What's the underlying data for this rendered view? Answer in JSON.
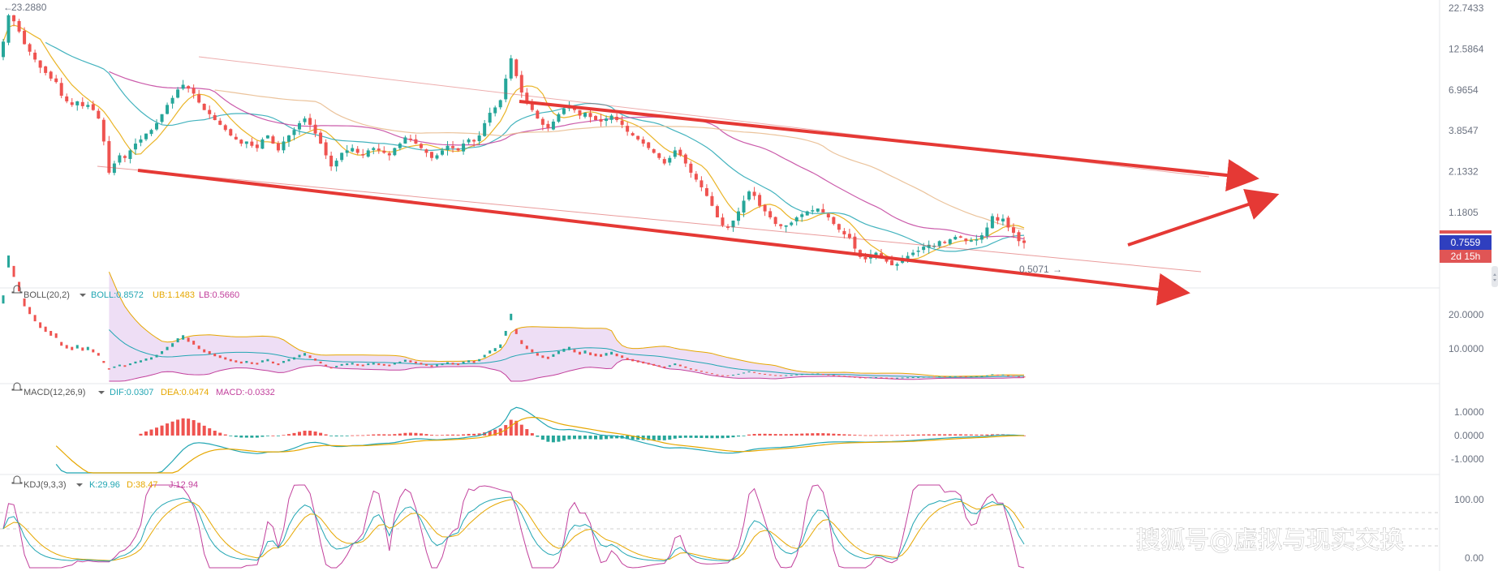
{
  "price": {
    "high_label": "23.2880",
    "low_label": "0.5071",
    "current_price": "0.7559",
    "countdown": "2d 15h",
    "y_ticks": [
      "22.7433",
      "12.5864",
      "6.9654",
      "3.8547",
      "2.1332",
      "1.1805"
    ],
    "y_tick_values": [
      22.7433,
      12.5864,
      6.9654,
      3.8547,
      2.1332,
      1.1805
    ],
    "scale": "log"
  },
  "boll": {
    "name": "BOLL(20,2)",
    "values": [
      {
        "label": "BOLL:0.8572",
        "color": "#22a6b3"
      },
      {
        "label": "UB:1.1483",
        "color": "#e6a700"
      },
      {
        "label": "LB:0.5660",
        "color": "#c2409c"
      }
    ],
    "y_ticks": [
      "20.0000",
      "10.0000"
    ]
  },
  "macd": {
    "name": "MACD(12,26,9)",
    "values": [
      {
        "label": "DIF:0.0307",
        "color": "#22a6b3"
      },
      {
        "label": "DEA:0.0474",
        "color": "#e6a700"
      },
      {
        "label": "MACD:-0.0332",
        "color": "#c2409c"
      }
    ],
    "y_ticks": [
      "1.0000",
      "0.0000",
      "-1.0000"
    ]
  },
  "kdj": {
    "name": "KDJ(9,3,3)",
    "values": [
      {
        "label": "K:29.96",
        "color": "#22a6b3"
      },
      {
        "label": "D:38.47",
        "color": "#e6a700"
      },
      {
        "label": "J:12.94",
        "color": "#c2409c"
      }
    ],
    "y_ticks": [
      "100.00",
      "0.00"
    ]
  },
  "watermark": "搜狐号@虚拟与现实交换",
  "colors": {
    "up": "#26a69a",
    "down": "#ef5350",
    "arrow": "#e53935",
    "price_badge": "#2f3fbf",
    "countdown_badge": "#e05555"
  },
  "chart_data": {
    "type": "candlestick",
    "y_scale": "log",
    "close_series": [
      14.0,
      20.5,
      18.8,
      16.2,
      13.5,
      12.1,
      10.8,
      9.6,
      8.9,
      8.2,
      7.8,
      6.4,
      5.9,
      5.6,
      5.9,
      5.5,
      5.6,
      5.2,
      4.6,
      3.3,
      2.1,
      2.4,
      2.7,
      2.6,
      2.9,
      3.2,
      3.4,
      3.7,
      3.9,
      4.3,
      4.9,
      5.6,
      6.2,
      7.0,
      7.5,
      7.1,
      6.6,
      5.8,
      5.2,
      4.9,
      4.5,
      4.2,
      3.9,
      3.6,
      3.4,
      3.2,
      3.3,
      3.1,
      3.0,
      3.4,
      3.6,
      3.2,
      2.9,
      3.3,
      3.6,
      3.9,
      4.3,
      4.6,
      4.2,
      3.7,
      3.2,
      2.7,
      2.3,
      2.5,
      2.8,
      2.9,
      3.0,
      2.8,
      2.7,
      2.9,
      3.0,
      2.9,
      2.8,
      2.7,
      3.0,
      3.2,
      3.5,
      3.4,
      3.2,
      3.0,
      2.8,
      2.6,
      2.7,
      2.9,
      3.1,
      3.0,
      2.9,
      3.2,
      3.4,
      3.3,
      3.6,
      4.3,
      5.0,
      5.4,
      6.0,
      8.2,
      11.0,
      8.5,
      6.7,
      5.8,
      5.2,
      4.6,
      4.2,
      4.0,
      4.4,
      4.9,
      5.3,
      5.6,
      5.2,
      4.8,
      5.0,
      4.7,
      4.5,
      4.4,
      4.6,
      4.8,
      4.5,
      4.2,
      3.8,
      3.6,
      3.4,
      3.2,
      3.0,
      2.8,
      2.6,
      2.4,
      2.6,
      2.9,
      2.7,
      2.4,
      2.1,
      1.9,
      1.7,
      1.5,
      1.3,
      1.1,
      0.98,
      0.95,
      1.05,
      1.2,
      1.4,
      1.6,
      1.5,
      1.3,
      1.2,
      1.1,
      1.0,
      0.97,
      0.98,
      1.02,
      1.1,
      1.15,
      1.2,
      1.22,
      1.25,
      1.18,
      1.1,
      1.0,
      0.92,
      0.86,
      0.82,
      0.7,
      0.62,
      0.6,
      0.64,
      0.66,
      0.62,
      0.58,
      0.55,
      0.56,
      0.6,
      0.63,
      0.66,
      0.68,
      0.72,
      0.74,
      0.73,
      0.78,
      0.76,
      0.8,
      0.83,
      0.82,
      0.78,
      0.79,
      0.8,
      0.85,
      0.95,
      1.12,
      1.05,
      1.08,
      0.95,
      0.88,
      0.78,
      0.76
    ],
    "annotations": [
      "23.2880",
      "0.5071"
    ]
  }
}
